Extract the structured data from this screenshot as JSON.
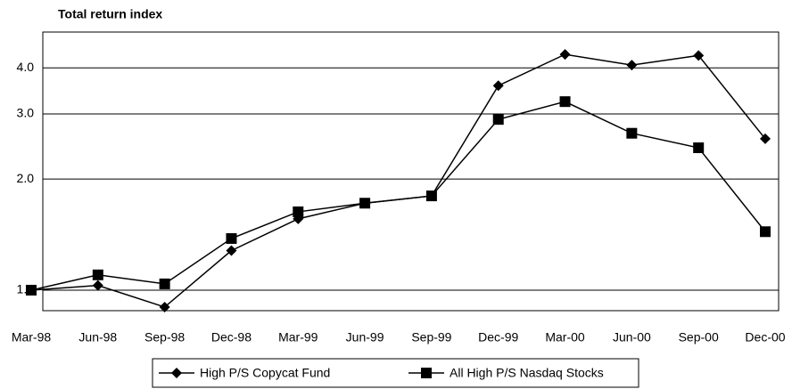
{
  "chart_data": {
    "type": "line",
    "title": "Total return index",
    "categories": [
      "Mar-98",
      "Jun-98",
      "Sep-98",
      "Dec-98",
      "Mar-99",
      "Jun-99",
      "Sep-99",
      "Dec-99",
      "Mar-00",
      "Jun-00",
      "Sep-00",
      "Dec-00"
    ],
    "series": [
      {
        "name": "High P/S Copycat Fund",
        "color": "#000000",
        "marker": "diamond",
        "values": [
          1.0,
          1.03,
          0.9,
          1.28,
          1.56,
          1.72,
          1.8,
          3.58,
          4.35,
          4.07,
          4.32,
          2.57
        ]
      },
      {
        "name": "All High P/S Nasdaq Stocks",
        "color": "#000000",
        "marker": "square",
        "values": [
          1.0,
          1.1,
          1.04,
          1.38,
          1.63,
          1.72,
          1.8,
          2.9,
          3.24,
          2.66,
          2.43,
          1.44
        ]
      }
    ],
    "log_y": true,
    "ylim": [
      0.88,
      5.0
    ],
    "yticks": [
      {
        "value": 1,
        "label": "1.0"
      },
      {
        "value": 2,
        "label": "2.0"
      },
      {
        "value": 3,
        "label": "3.0"
      },
      {
        "value": 4,
        "label": "4.0"
      }
    ],
    "grid": true,
    "legend": "bottom"
  }
}
